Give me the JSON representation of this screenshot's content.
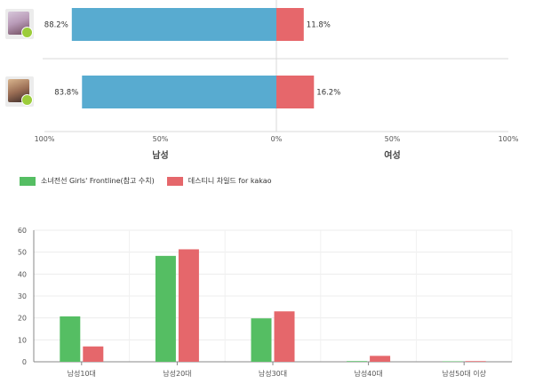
{
  "chart_data": [
    {
      "type": "bar",
      "orientation": "horizontal-diverging",
      "rows": [
        {
          "icon": "girls-frontline-app-icon",
          "male": 88.2,
          "female": 11.8,
          "male_label": "88.2%",
          "female_label": "11.8%"
        },
        {
          "icon": "destiny-child-app-icon",
          "male": 83.8,
          "female": 16.2,
          "male_label": "83.8%",
          "female_label": "16.2%"
        }
      ],
      "xlim": [
        -100,
        100
      ],
      "ticks": [
        "100%",
        "50%",
        "0%",
        "50%",
        "100%"
      ],
      "category_labels": {
        "left": "남성",
        "right": "여성"
      },
      "colors": {
        "male": "#58abd0",
        "female": "#e6676b",
        "axis": "#d9d9d9"
      }
    },
    {
      "type": "bar",
      "categories": [
        "남성10대",
        "남성20대",
        "남성30대",
        "남성40대",
        "남성50대 이상"
      ],
      "series": [
        {
          "name": "소녀전선 Girls' Frontline(참고 수치)",
          "values": [
            20.7,
            48.3,
            19.8,
            0.3,
            0.2
          ],
          "color": "#55be63"
        },
        {
          "name": "데스티니 차일드 for kakao",
          "values": [
            7.0,
            51.3,
            23.0,
            2.7,
            0.3
          ],
          "color": "#e5676b"
        }
      ],
      "ylim": [
        0,
        60
      ],
      "yticks": [
        "0",
        "10",
        "20",
        "30",
        "40",
        "50",
        "60"
      ],
      "grid": true,
      "legend": "top-left"
    }
  ]
}
